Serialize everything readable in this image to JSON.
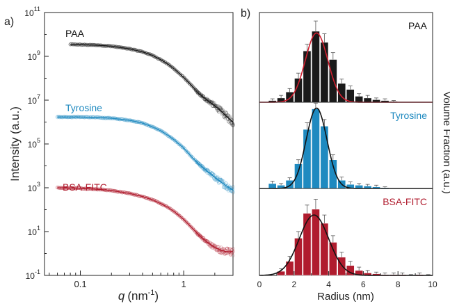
{
  "panel_labels": [
    "a)",
    "b)"
  ],
  "colors": {
    "paa": "#1a1a1a",
    "tyrosine": "#1f8ac0",
    "bsa": "#b01c2e",
    "paa_fit": "#d21f2f",
    "hist_fit": "#111111",
    "axis": "#222222"
  },
  "chart_data": [
    {
      "type": "scatter",
      "panel": "a)",
      "xlabel": "q (nm⁻¹)",
      "xlabel_parts": {
        "q": "q",
        "unit": "(nm",
        "exp": "-1",
        "close": ")"
      },
      "ylabel": "Intensity (a.u.)",
      "xscale": "log",
      "yscale": "log",
      "xlim": [
        0.045,
        3.0
      ],
      "ylim": [
        0.1,
        100000000000.0
      ],
      "x_ticks": [
        0.1,
        1
      ],
      "x_tick_labels": [
        "0.1",
        "1"
      ],
      "y_ticks": [
        0.1,
        10,
        1000,
        100000,
        10000000,
        1000000000,
        100000000000
      ],
      "y_tick_labels": [
        {
          "base": "10",
          "exp": "-1"
        },
        {
          "base": "10",
          "exp": "1"
        },
        {
          "base": "10",
          "exp": "3"
        },
        {
          "base": "10",
          "exp": "5"
        },
        {
          "base": "10",
          "exp": "7"
        },
        {
          "base": "10",
          "exp": "9"
        },
        {
          "base": "10",
          "exp": "11"
        }
      ],
      "series": [
        {
          "name": "PAA",
          "color": "#1a1a1a",
          "fit_color": "#1a1a1a",
          "q": [
            0.08,
            0.1,
            0.15,
            0.2,
            0.3,
            0.4,
            0.5,
            0.6,
            0.7,
            0.8,
            0.9,
            1.0,
            1.2,
            1.4,
            1.6,
            1.8,
            2.0,
            2.3,
            2.6,
            3.0
          ],
          "intensity": [
            3500000000.0,
            3400000000.0,
            3200000000.0,
            2900000000.0,
            2200000000.0,
            1600000000.0,
            1100000000.0,
            700000000.0,
            450000000.0,
            280000000.0,
            170000000.0,
            110000000.0,
            45000000.0,
            20000000.0,
            12000000.0,
            8000000.0,
            5500000.0,
            3200000.0,
            1800000.0,
            1000000.0
          ]
        },
        {
          "name": "Tyrosine",
          "color": "#1f8ac0",
          "fit_color": "#1f8ac0",
          "q": [
            0.06,
            0.08,
            0.1,
            0.15,
            0.2,
            0.3,
            0.4,
            0.5,
            0.6,
            0.7,
            0.8,
            0.9,
            1.0,
            1.2,
            1.4,
            1.6,
            1.8,
            2.0,
            2.3,
            2.6,
            3.0
          ],
          "intensity": [
            1700000.0,
            1700000.0,
            1700000.0,
            1600000.0,
            1500000.0,
            1200000.0,
            900000.0,
            600000.0,
            400000.0,
            250000.0,
            160000.0,
            100000.0,
            65000.0,
            25000.0,
            12000.0,
            7000.0,
            4500.0,
            3000.0,
            1800.0,
            1200.0,
            800.0
          ]
        },
        {
          "name": "BSA-FITC",
          "color": "#b01c2e",
          "fit_color": "#b01c2e",
          "q": [
            0.06,
            0.08,
            0.1,
            0.15,
            0.2,
            0.3,
            0.4,
            0.5,
            0.6,
            0.7,
            0.8,
            0.9,
            1.0,
            1.2,
            1.4,
            1.6,
            1.8,
            2.0,
            2.3,
            2.6,
            3.0
          ],
          "intensity": [
            1000,
            980,
            950,
            850,
            750,
            550,
            400,
            280,
            190,
            130,
            85,
            55,
            36,
            15,
            7,
            4,
            2.6,
            1.9,
            1.4,
            1.2,
            1.2
          ]
        }
      ]
    },
    {
      "type": "bar",
      "panel": "b)",
      "xlabel": "Radius (nm)",
      "ylabel": "Volume Fraction (a.u.)",
      "xlim": [
        0,
        10
      ],
      "x_ticks": [
        0,
        2,
        4,
        6,
        8,
        10
      ],
      "x_tick_labels": [
        "0",
        "2",
        "4",
        "6",
        "8",
        "10"
      ],
      "bin_centers": [
        0.75,
        1.25,
        1.75,
        2.25,
        2.75,
        3.25,
        3.75,
        4.25,
        4.75,
        5.25,
        5.75,
        6.25,
        6.75,
        7.25,
        7.75,
        8.25,
        8.75,
        9.25,
        9.75
      ],
      "bin_width": 0.5,
      "series": [
        {
          "name": "PAA",
          "color": "#1a1a1a",
          "fit_color": "#d21f2f",
          "values": [
            0.02,
            0.05,
            0.12,
            0.28,
            0.6,
            0.83,
            0.7,
            0.5,
            0.22,
            0.15,
            0.07,
            0.05,
            0.03,
            0.02,
            0.01,
            0.0,
            0.0,
            0.0,
            0.0
          ],
          "errors": [
            0.02,
            0.03,
            0.04,
            0.06,
            0.08,
            0.12,
            0.1,
            0.08,
            0.05,
            0.04,
            0.03,
            0.03,
            0.02,
            0.02,
            0.01,
            0.0,
            0.0,
            0.0,
            0.0
          ],
          "fit_mean": 3.3,
          "fit_sigma": 0.65,
          "fit_peak": 0.81
        },
        {
          "name": "Tyrosine",
          "color": "#1f8ac0",
          "fit_color": "#111111",
          "values": [
            0.06,
            0.04,
            0.1,
            0.3,
            0.72,
            0.97,
            0.76,
            0.35,
            0.1,
            0.05,
            0.04,
            0.03,
            0.02,
            0.01,
            0.0,
            0.0,
            0.0,
            0.0,
            0.0
          ],
          "errors": [
            0.03,
            0.02,
            0.03,
            0.05,
            0.08,
            0.07,
            0.08,
            0.06,
            0.04,
            0.03,
            0.02,
            0.02,
            0.02,
            0.01,
            0.0,
            0.0,
            0.0,
            0.0,
            0.0
          ],
          "fit_mean": 3.3,
          "fit_sigma": 0.6,
          "fit_peak": 0.98
        },
        {
          "name": "BSA-FITC",
          "color": "#b01c2e",
          "fit_color": "#111111",
          "values": [
            0.0,
            0.05,
            0.17,
            0.45,
            0.75,
            0.8,
            0.63,
            0.4,
            0.22,
            0.12,
            0.06,
            0.03,
            0.02,
            0.01,
            0.01,
            0.01,
            0.0,
            0.01,
            0.0
          ],
          "errors": [
            0.0,
            0.03,
            0.06,
            0.08,
            0.1,
            0.12,
            0.1,
            0.08,
            0.06,
            0.05,
            0.04,
            0.03,
            0.02,
            0.02,
            0.02,
            0.02,
            0.01,
            0.02,
            0.01
          ],
          "fit_mean": 3.15,
          "fit_sigma": 0.85,
          "fit_peak": 0.73
        }
      ]
    }
  ]
}
